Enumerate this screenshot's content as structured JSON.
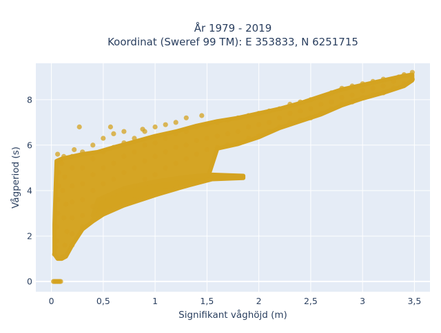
{
  "chart_data": {
    "type": "scatter",
    "title_line1": "År 1979 - 2019",
    "title_line2": "Koordinat (Sweref 99 TM): E 353833, N 6251715",
    "xlabel": "Signifikant våghöjd (m)",
    "ylabel": "Vågperiod (s)",
    "xlim": [
      -0.15,
      3.65
    ],
    "ylim": [
      -0.45,
      9.6
    ],
    "xticks": [
      0,
      0.5,
      1,
      1.5,
      2,
      2.5,
      3,
      3.5
    ],
    "xtick_labels": [
      "0",
      "0,5",
      "1",
      "1,5",
      "2",
      "2,5",
      "3",
      "3,5"
    ],
    "yticks": [
      0,
      2,
      4,
      6,
      8
    ],
    "ytick_labels": [
      "0",
      "2",
      "4",
      "6",
      "8"
    ],
    "grid": true,
    "marker_color": "#d4a320",
    "background_color": "#e5ecf6",
    "series": [
      {
        "points": [
          [
            0.02,
            0
          ],
          [
            0.03,
            0
          ],
          [
            0.04,
            0
          ],
          [
            0.05,
            0
          ],
          [
            0.06,
            0
          ],
          [
            0.07,
            0
          ],
          [
            0.08,
            0
          ],
          [
            0.09,
            0
          ],
          [
            0.03,
            1.2
          ],
          [
            0.04,
            1.5
          ],
          [
            0.05,
            1.8
          ],
          [
            0.05,
            2.4
          ],
          [
            0.06,
            3.0
          ],
          [
            0.06,
            3.6
          ],
          [
            0.07,
            4.2
          ],
          [
            0.07,
            4.8
          ],
          [
            0.08,
            5.3
          ],
          [
            0.06,
            5.6
          ],
          [
            0.1,
            1.05
          ],
          [
            0.12,
            1.1
          ],
          [
            0.13,
            1.6
          ],
          [
            0.15,
            2.2
          ],
          [
            0.12,
            2.8
          ],
          [
            0.14,
            3.4
          ],
          [
            0.11,
            4.0
          ],
          [
            0.13,
            4.6
          ],
          [
            0.1,
            5.2
          ],
          [
            0.12,
            5.5
          ],
          [
            0.2,
            1.6
          ],
          [
            0.2,
            2.1
          ],
          [
            0.2,
            2.8
          ],
          [
            0.2,
            3.5
          ],
          [
            0.2,
            4.2
          ],
          [
            0.2,
            5.0
          ],
          [
            0.2,
            5.5
          ],
          [
            0.22,
            5.8
          ],
          [
            0.3,
            2.4
          ],
          [
            0.3,
            2.9
          ],
          [
            0.3,
            3.6
          ],
          [
            0.3,
            4.3
          ],
          [
            0.3,
            5.0
          ],
          [
            0.3,
            5.7
          ],
          [
            0.27,
            6.8
          ],
          [
            0.4,
            2.7
          ],
          [
            0.4,
            3.3
          ],
          [
            0.4,
            4.0
          ],
          [
            0.4,
            4.7
          ],
          [
            0.4,
            5.4
          ],
          [
            0.4,
            6.0
          ],
          [
            0.5,
            3.0
          ],
          [
            0.5,
            3.6
          ],
          [
            0.5,
            4.3
          ],
          [
            0.5,
            5.0
          ],
          [
            0.5,
            5.7
          ],
          [
            0.5,
            6.3
          ],
          [
            0.57,
            6.8
          ],
          [
            0.6,
            3.2
          ],
          [
            0.6,
            3.8
          ],
          [
            0.6,
            4.5
          ],
          [
            0.6,
            5.2
          ],
          [
            0.6,
            5.9
          ],
          [
            0.6,
            6.5
          ],
          [
            0.7,
            3.4
          ],
          [
            0.7,
            4.0
          ],
          [
            0.7,
            4.8
          ],
          [
            0.7,
            5.5
          ],
          [
            0.7,
            6.1
          ],
          [
            0.7,
            6.6
          ],
          [
            0.8,
            3.6
          ],
          [
            0.8,
            4.2
          ],
          [
            0.8,
            5.0
          ],
          [
            0.8,
            5.7
          ],
          [
            0.8,
            6.3
          ],
          [
            0.88,
            6.7
          ],
          [
            0.9,
            3.7
          ],
          [
            0.9,
            4.5
          ],
          [
            0.9,
            5.3
          ],
          [
            0.9,
            6.0
          ],
          [
            0.9,
            6.6
          ],
          [
            1.0,
            3.9
          ],
          [
            1.0,
            4.7
          ],
          [
            1.0,
            5.5
          ],
          [
            1.0,
            6.1
          ],
          [
            1.0,
            6.8
          ],
          [
            1.1,
            4.0
          ],
          [
            1.1,
            5.0
          ],
          [
            1.1,
            5.7
          ],
          [
            1.1,
            6.3
          ],
          [
            1.1,
            6.9
          ],
          [
            1.2,
            4.2
          ],
          [
            1.2,
            5.2
          ],
          [
            1.2,
            5.9
          ],
          [
            1.2,
            6.5
          ],
          [
            1.2,
            7.0
          ],
          [
            1.3,
            4.3
          ],
          [
            1.3,
            5.4
          ],
          [
            1.3,
            6.0
          ],
          [
            1.3,
            6.6
          ],
          [
            1.3,
            7.2
          ],
          [
            1.4,
            4.4
          ],
          [
            1.4,
            5.6
          ],
          [
            1.4,
            6.2
          ],
          [
            1.4,
            6.8
          ],
          [
            1.45,
            7.3
          ],
          [
            1.5,
            4.5
          ],
          [
            1.55,
            4.6
          ],
          [
            1.65,
            4.6
          ],
          [
            1.82,
            4.6
          ],
          [
            1.5,
            5.8
          ],
          [
            1.5,
            6.3
          ],
          [
            1.5,
            6.9
          ],
          [
            1.6,
            5.9
          ],
          [
            1.6,
            6.4
          ],
          [
            1.6,
            7.0
          ],
          [
            1.7,
            6.0
          ],
          [
            1.7,
            6.5
          ],
          [
            1.7,
            7.1
          ],
          [
            1.8,
            6.1
          ],
          [
            1.8,
            6.6
          ],
          [
            1.8,
            7.2
          ],
          [
            1.9,
            6.3
          ],
          [
            1.9,
            6.8
          ],
          [
            1.9,
            7.3
          ],
          [
            2.0,
            6.4
          ],
          [
            2.0,
            6.9
          ],
          [
            2.0,
            7.4
          ],
          [
            2.1,
            6.6
          ],
          [
            2.1,
            7.0
          ],
          [
            2.1,
            7.5
          ],
          [
            2.2,
            6.8
          ],
          [
            2.2,
            7.2
          ],
          [
            2.2,
            7.6
          ],
          [
            2.3,
            7.0
          ],
          [
            2.3,
            7.4
          ],
          [
            2.3,
            7.8
          ],
          [
            2.4,
            7.1
          ],
          [
            2.4,
            7.5
          ],
          [
            2.4,
            7.9
          ],
          [
            2.5,
            7.2
          ],
          [
            2.5,
            7.6
          ],
          [
            2.5,
            8.0
          ],
          [
            2.6,
            7.4
          ],
          [
            2.6,
            7.8
          ],
          [
            2.6,
            8.1
          ],
          [
            2.7,
            7.6
          ],
          [
            2.7,
            7.9
          ],
          [
            2.7,
            8.3
          ],
          [
            2.8,
            7.8
          ],
          [
            2.8,
            8.1
          ],
          [
            2.8,
            8.5
          ],
          [
            2.9,
            7.9
          ],
          [
            2.9,
            8.2
          ],
          [
            2.9,
            8.6
          ],
          [
            3.0,
            8.1
          ],
          [
            3.0,
            8.4
          ],
          [
            3.0,
            8.7
          ],
          [
            3.1,
            8.2
          ],
          [
            3.1,
            8.5
          ],
          [
            3.1,
            8.8
          ],
          [
            3.2,
            8.3
          ],
          [
            3.2,
            8.6
          ],
          [
            3.2,
            8.9
          ],
          [
            3.3,
            8.5
          ],
          [
            3.3,
            8.8
          ],
          [
            3.35,
            9.0
          ],
          [
            3.4,
            8.7
          ],
          [
            3.4,
            9.1
          ],
          [
            3.48,
            8.9
          ],
          [
            3.48,
            9.2
          ]
        ]
      }
    ]
  }
}
